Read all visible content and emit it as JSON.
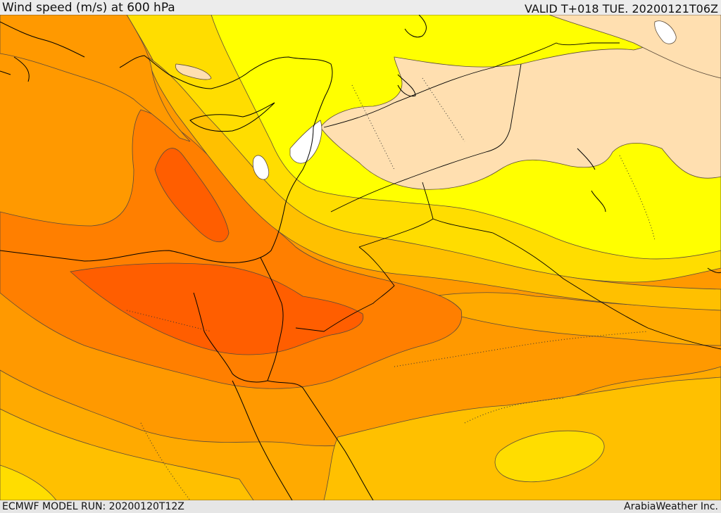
{
  "header": {
    "title": "Wind speed (m/s) at 600 hPa",
    "valid": "VALID T+018 TUE. 20200121T06Z"
  },
  "footer": {
    "model_run": "ECMWF MODEL RUN: 20200120T12Z",
    "credit": "ArabiaWeather Inc."
  },
  "palette": {
    "very_light": "#ffffff",
    "peach": "#ffdfb0",
    "yellow": "#ffff00",
    "gold": "#ffdd00",
    "amber": "#ffc000",
    "orange_light": "#ffaa00",
    "orange": "#ff9900",
    "orange_dark": "#ff7f00",
    "red_orange": "#ff5e00",
    "coastline": "#000000",
    "contour": "#5a4a3a"
  }
}
